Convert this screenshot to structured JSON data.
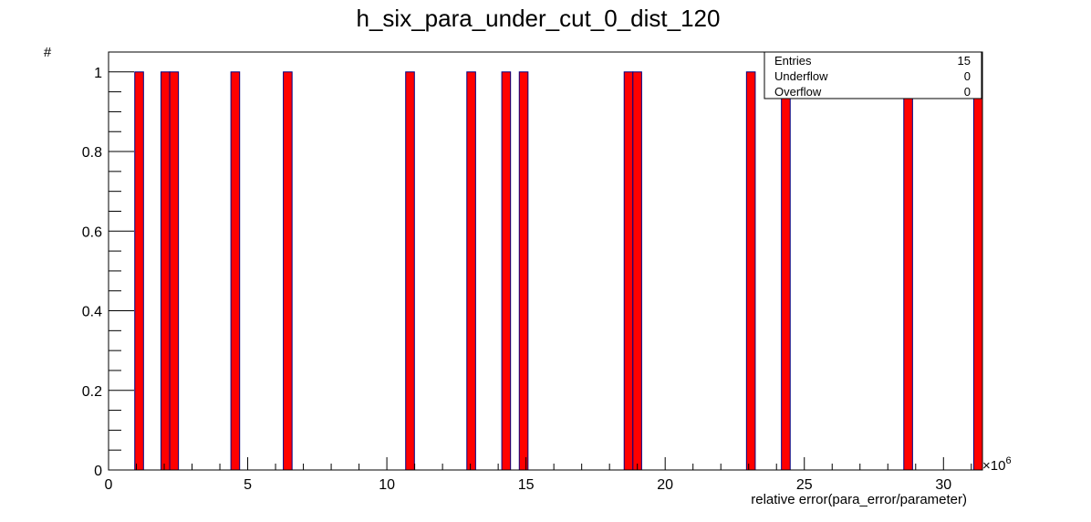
{
  "chart_data": {
    "type": "bar",
    "title": "h_six_para_under_cut_0_dist_120",
    "xlabel": "relative error(para_error/parameter)",
    "ylabel": "#",
    "x_exponent_label": "×10",
    "x_exponent_power": "6",
    "xlim": [
      0,
      31.4
    ],
    "ylim": [
      0,
      1.05
    ],
    "bin_width": 0.314,
    "x_major_ticks": [
      0,
      5,
      10,
      15,
      20,
      25,
      30
    ],
    "x_tick_labels": [
      "0",
      "5",
      "10",
      "15",
      "20",
      "25",
      "30"
    ],
    "x_minor_step": 1,
    "y_major_ticks": [
      0,
      0.2,
      0.4,
      0.6,
      0.8,
      1
    ],
    "y_tick_labels": [
      "0",
      "0.2",
      "0.4",
      "0.6",
      "0.8",
      "1"
    ],
    "y_minor_step": 0.05,
    "fill_color": "#ff0000",
    "line_color": "#000080",
    "bins": [
      {
        "x_low": 0.942,
        "x_high": 1.256,
        "value": 1
      },
      {
        "x_low": 1.884,
        "x_high": 2.198,
        "value": 1
      },
      {
        "x_low": 2.198,
        "x_high": 2.512,
        "value": 1
      },
      {
        "x_low": 4.396,
        "x_high": 4.71,
        "value": 1
      },
      {
        "x_low": 6.28,
        "x_high": 6.594,
        "value": 1
      },
      {
        "x_low": 10.676,
        "x_high": 10.99,
        "value": 1
      },
      {
        "x_low": 12.874,
        "x_high": 13.188,
        "value": 1
      },
      {
        "x_low": 14.13,
        "x_high": 14.444,
        "value": 1
      },
      {
        "x_low": 14.758,
        "x_high": 15.072,
        "value": 1
      },
      {
        "x_low": 18.526,
        "x_high": 18.84,
        "value": 1
      },
      {
        "x_low": 18.84,
        "x_high": 19.154,
        "value": 1
      },
      {
        "x_low": 22.922,
        "x_high": 23.236,
        "value": 1
      },
      {
        "x_low": 24.178,
        "x_high": 24.492,
        "value": 1
      },
      {
        "x_low": 28.574,
        "x_high": 28.888,
        "value": 1
      },
      {
        "x_low": 31.086,
        "x_high": 31.4,
        "value": 1
      }
    ]
  },
  "stats": {
    "rows": [
      {
        "label": "Entries",
        "value": "15"
      },
      {
        "label": "Underflow",
        "value": "0"
      },
      {
        "label": "Overflow",
        "value": "0"
      }
    ]
  }
}
